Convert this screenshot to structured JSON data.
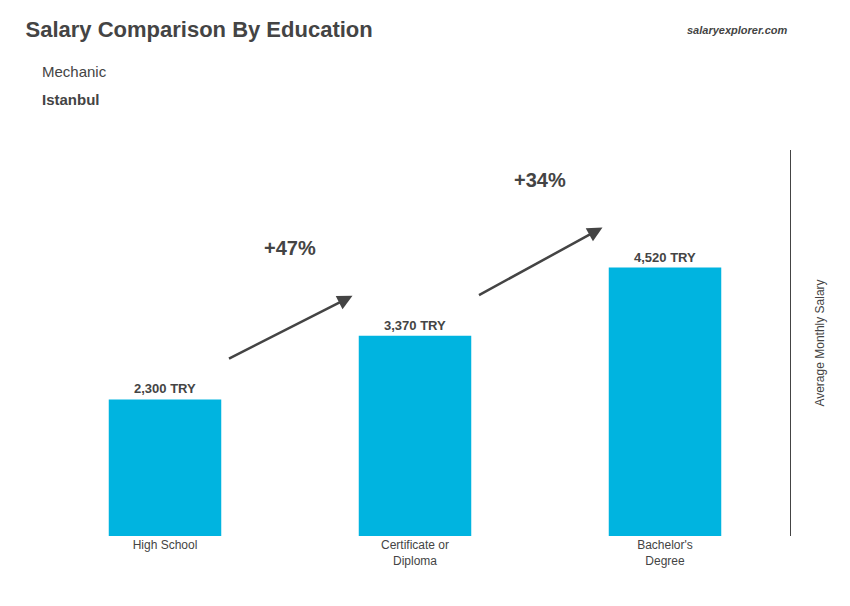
{
  "chart_data": {
    "type": "bar",
    "title": "Salary Comparison By Education",
    "subtitle": [
      "Mechanic",
      "Istanbul"
    ],
    "source": "salaryexplorer.com",
    "ylabel": "Average Monthly Salary",
    "categories": [
      "High School",
      "Certificate or\nDiploma",
      "Bachelor's\nDegree"
    ],
    "values": [
      2300,
      3370,
      4520
    ],
    "value_labels": [
      "2,300 TRY",
      "3,370 TRY",
      "4,520 TRY"
    ],
    "data_labels": true,
    "color": "#00b4e0",
    "annotations": [
      {
        "text": "+47%",
        "from": "High School",
        "to": "Certificate or\nDiploma"
      },
      {
        "text": "+34%",
        "from": "Certificate or\nDiploma",
        "to": "Bachelor's\nDegree"
      }
    ],
    "ylim": [
      0,
      6500
    ],
    "yticks": [],
    "grid": false,
    "tick_labels": "x"
  }
}
